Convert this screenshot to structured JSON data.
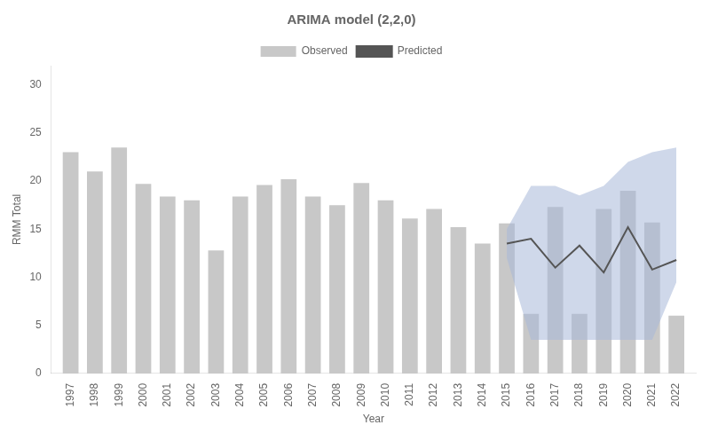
{
  "chart_data": {
    "type": "bar",
    "title": "ARIMA model (2,2,0)",
    "xlabel": "Year",
    "ylabel": "RMM Total",
    "series": [
      {
        "name": "Observed",
        "type": "bar",
        "color": "#c8c8c8",
        "x": [
          1997,
          1998,
          1999,
          2000,
          2001,
          2002,
          2003,
          2004,
          2005,
          2006,
          2007,
          2008,
          2009,
          2010,
          2011,
          2012,
          2013,
          2014,
          2015,
          2016,
          2017,
          2018,
          2019,
          2020,
          2021,
          2022
        ],
        "values": [
          23.0,
          21.0,
          23.5,
          19.7,
          18.4,
          18.0,
          12.8,
          18.4,
          19.6,
          20.2,
          18.4,
          17.5,
          19.8,
          18.0,
          16.1,
          17.1,
          15.2,
          13.5,
          15.6,
          6.2,
          17.3,
          6.2,
          17.1,
          19.0,
          15.7,
          6.0
        ]
      },
      {
        "name": "Predicted",
        "type": "line",
        "color": "#555555",
        "x": [
          2015,
          2016,
          2017,
          2018,
          2019,
          2020,
          2021,
          2022
        ],
        "values": [
          13.5,
          14.0,
          11.0,
          13.3,
          10.5,
          15.2,
          10.8,
          11.8
        ],
        "band": {
          "lower": [
            12.0,
            3.5,
            3.5,
            3.5,
            3.5,
            3.5,
            3.5,
            9.5
          ],
          "upper": [
            15.0,
            19.5,
            19.5,
            18.5,
            19.5,
            22.0,
            23.0,
            23.5
          ],
          "color": "#a8b8d8"
        }
      }
    ],
    "xlim": [
      1996.2,
      2022.8
    ],
    "xticks": [
      1997,
      1998,
      1999,
      2000,
      2001,
      2002,
      2003,
      2004,
      2005,
      2006,
      2007,
      2008,
      2009,
      2010,
      2011,
      2012,
      2013,
      2014,
      2015,
      2016,
      2017,
      2018,
      2019,
      2020,
      2021,
      2022
    ],
    "ylim": [
      0,
      32
    ],
    "yticks": [
      0,
      5,
      10,
      15,
      20,
      25,
      30
    ],
    "grid": false,
    "legend": "top"
  }
}
